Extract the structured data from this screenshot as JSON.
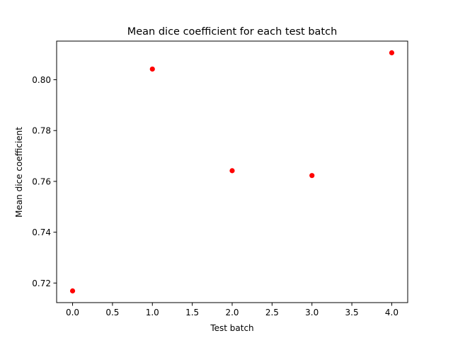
{
  "chart_data": {
    "type": "scatter",
    "title": "Mean dice coefficient for each test batch",
    "xlabel": "Test batch",
    "ylabel": "Mean dice coefficient",
    "xlim": [
      -0.2,
      4.2
    ],
    "ylim": [
      0.7123,
      0.8152
    ],
    "x_ticks": [
      0.0,
      0.5,
      1.0,
      1.5,
      2.0,
      2.5,
      3.0,
      3.5,
      4.0
    ],
    "x_tick_labels": [
      "0.0",
      "0.5",
      "1.0",
      "1.5",
      "2.0",
      "2.5",
      "3.0",
      "3.5",
      "4.0"
    ],
    "y_ticks": [
      0.72,
      0.74,
      0.76,
      0.78,
      0.8
    ],
    "y_tick_labels": [
      "0.72",
      "0.74",
      "0.76",
      "0.78",
      "0.80"
    ],
    "grid": false,
    "legend": "none",
    "marker_color": "#ff0000",
    "x": [
      0,
      1,
      2,
      3,
      4
    ],
    "y": [
      0.7169,
      0.8042,
      0.7642,
      0.7623,
      0.8106
    ]
  }
}
